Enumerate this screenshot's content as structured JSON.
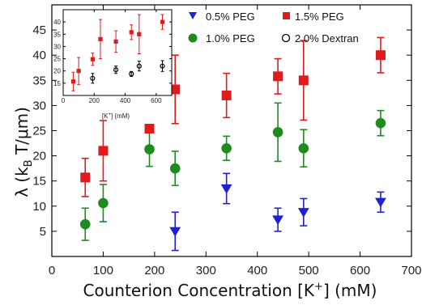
{
  "chart_data": [
    {
      "type": "scatter",
      "role": "main",
      "xlabel_main": "Counterion Concentration [K",
      "xlabel_sup": "+",
      "xlabel_tail": "] (mM)",
      "ylabel_prefix": "λ  (k",
      "ylabel_sub": "B",
      "ylabel_suffix": " T/μm)",
      "xlim": [
        0,
        700
      ],
      "ylim": [
        0,
        50
      ],
      "x_ticks": [
        0,
        100,
        200,
        300,
        400,
        500,
        600,
        700
      ],
      "y_ticks": [
        5,
        10,
        15,
        20,
        25,
        30,
        35,
        40,
        45
      ],
      "error_bars": true,
      "series": [
        {
          "name": "0.5% PEG",
          "marker": "triangle-down",
          "color": "#1f1fd6",
          "points": [
            {
              "x": 240,
              "y": 5.0,
              "err": 3.8
            },
            {
              "x": 340,
              "y": 13.5,
              "err": 3.0
            },
            {
              "x": 440,
              "y": 7.3,
              "err": 2.3
            },
            {
              "x": 490,
              "y": 8.8,
              "err": 2.7
            },
            {
              "x": 640,
              "y": 10.8,
              "err": 2.0
            }
          ]
        },
        {
          "name": "1.0% PEG",
          "marker": "circle",
          "color": "#1f8a1f",
          "points": [
            {
              "x": 65,
              "y": 6.4,
              "err": 3.2
            },
            {
              "x": 100,
              "y": 10.6,
              "err": 3.7
            },
            {
              "x": 190,
              "y": 21.3,
              "err": 3.4
            },
            {
              "x": 240,
              "y": 17.5,
              "err": 3.4
            },
            {
              "x": 340,
              "y": 21.5,
              "err": 2.4
            },
            {
              "x": 440,
              "y": 24.7,
              "err": 5.8
            },
            {
              "x": 490,
              "y": 21.5,
              "err": 3.7
            },
            {
              "x": 640,
              "y": 26.5,
              "err": 2.5
            }
          ]
        },
        {
          "name": "1.5% PEG",
          "marker": "square",
          "color": "#e01b1b",
          "points": [
            {
              "x": 65,
              "y": 15.7,
              "err": 3.8
            },
            {
              "x": 100,
              "y": 21.0,
              "err": 6.0
            },
            {
              "x": 190,
              "y": 25.4,
              "err": 0.8
            },
            {
              "x": 240,
              "y": 33.2,
              "err": 6.8
            },
            {
              "x": 340,
              "y": 32.0,
              "err": 4.4
            },
            {
              "x": 440,
              "y": 35.8,
              "err": 3.5
            },
            {
              "x": 490,
              "y": 35.0,
              "err": 7.9
            },
            {
              "x": 640,
              "y": 40.0,
              "err": 3.5
            }
          ]
        },
        {
          "name": "2.0% Dextran",
          "marker": "open-circle",
          "color": "#000000",
          "points": []
        }
      ],
      "legend_position": "top-right",
      "legend_columns": 2
    },
    {
      "type": "scatter",
      "role": "inset",
      "position": "top-left",
      "xlabel_main": "[K",
      "xlabel_sup": "+",
      "xlabel_tail": "] (mM)",
      "xlim": [
        0,
        700
      ],
      "ylim": [
        10,
        45
      ],
      "x_ticks": [
        0,
        200,
        400,
        600
      ],
      "y_ticks": [
        15,
        20,
        25,
        30,
        35,
        40
      ],
      "error_bars": true,
      "series": [
        {
          "name": "1.5% PEG",
          "marker": "square",
          "color": "#e01b1b",
          "points": [
            {
              "x": 65,
              "y": 15.7,
              "err": 3.8
            },
            {
              "x": 100,
              "y": 20.0,
              "err": 5.5
            },
            {
              "x": 190,
              "y": 24.8,
              "err": 2.5
            },
            {
              "x": 240,
              "y": 33.0,
              "err": 8.0
            },
            {
              "x": 340,
              "y": 32.0,
              "err": 4.4
            },
            {
              "x": 440,
              "y": 35.8,
              "err": 3.0
            },
            {
              "x": 490,
              "y": 35.0,
              "err": 8.0
            },
            {
              "x": 640,
              "y": 40.0,
              "err": 3.0
            }
          ]
        },
        {
          "name": "2.0% Dextran",
          "marker": "open-circle",
          "color": "#000000",
          "points": [
            {
              "x": 190,
              "y": 17.0,
              "err": 2.0
            },
            {
              "x": 340,
              "y": 20.5,
              "err": 1.5
            },
            {
              "x": 440,
              "y": 18.8,
              "err": 1.0
            },
            {
              "x": 490,
              "y": 22.0,
              "err": 2.0
            },
            {
              "x": 640,
              "y": 22.0,
              "err": 2.2
            }
          ]
        }
      ]
    }
  ]
}
